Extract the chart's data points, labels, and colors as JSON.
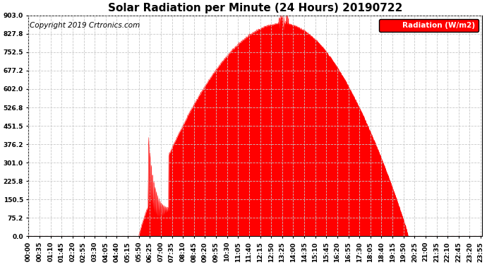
{
  "title": "Solar Radiation per Minute (24 Hours) 20190722",
  "copyright_text": "Copyright 2019 Crtronics.com",
  "legend_label": "Radiation (W/m2)",
  "yticks": [
    0.0,
    75.2,
    150.5,
    225.8,
    301.0,
    376.2,
    451.5,
    526.8,
    602.0,
    677.2,
    752.5,
    827.8,
    903.0
  ],
  "ylim": [
    0.0,
    903.0
  ],
  "fill_color": "#ff0000",
  "line_color": "#ff0000",
  "background_color": "#ffffff",
  "grid_color": "#c8c8c8",
  "legend_bg": "#ff0000",
  "legend_text_color": "#ffffff",
  "title_fontsize": 11,
  "axis_fontsize": 6.5,
  "copyright_fontsize": 7.5,
  "tick_interval_min": 35,
  "sunrise_min": 350,
  "sunset_min": 1205,
  "peak_min": 805,
  "peak_val": 870
}
